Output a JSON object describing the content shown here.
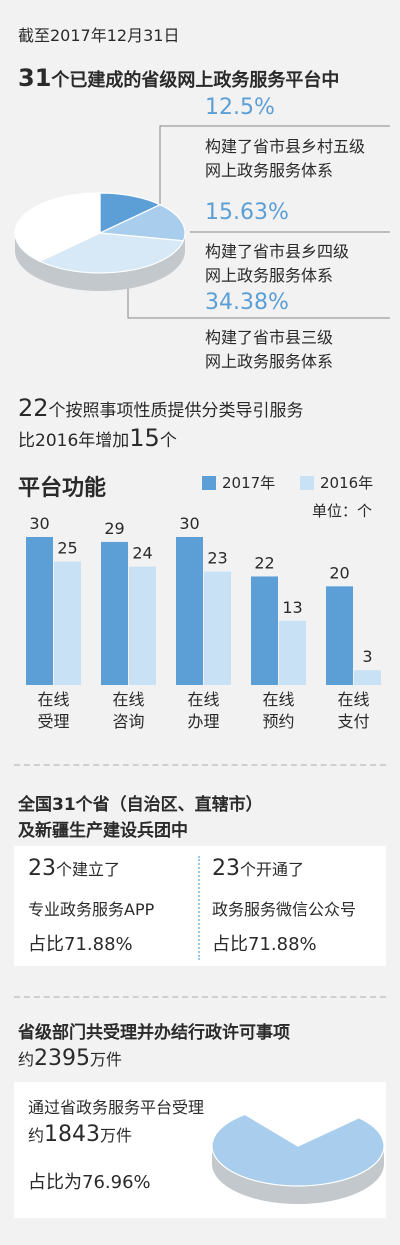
{
  "colors": {
    "blue": "#5b9fd6",
    "light_blue": "#c9e1f5",
    "text": "#2a2a2a"
  },
  "section1": {
    "date_line": "截至2017年12月31日",
    "heading_num": "31",
    "heading_rest": "个已建成的省级网上政务服务平台中",
    "items": [
      {
        "percent": "12.5%",
        "desc1": "构建了省市县乡村五级",
        "desc2": "网上政务服务体系"
      },
      {
        "percent": "15.63%",
        "desc1": "构建了省市县乡四级",
        "desc2": "网上政务服务体系"
      },
      {
        "percent": "34.38%",
        "desc1": "构建了省市县三级",
        "desc2": "网上政务服务体系"
      }
    ],
    "classify_num": "22",
    "classify_rest": "个按照事项性质提供分类导引服务",
    "compare_pre": "比2016年增加",
    "compare_num": "15",
    "compare_post": "个"
  },
  "chart_data": [
    {
      "type": "pie",
      "values": [
        12.5,
        15.63,
        34.38,
        37.49
      ],
      "labels": [
        "12.5%",
        "15.63%",
        "34.38%",
        ""
      ]
    },
    {
      "type": "bar",
      "title": "平台功能",
      "unit": "单位：个",
      "categories": [
        "在线受理",
        "在线咨询",
        "在线办理",
        "在线预约",
        "在线支付"
      ],
      "category_lines": [
        [
          "在线",
          "受理"
        ],
        [
          "在线",
          "咨询"
        ],
        [
          "在线",
          "办理"
        ],
        [
          "在线",
          "预约"
        ],
        [
          "在线",
          "支付"
        ]
      ],
      "series": [
        {
          "name": "2017年",
          "values": [
            30,
            29,
            30,
            22,
            20
          ],
          "color": "#5b9fd6"
        },
        {
          "name": "2016年",
          "values": [
            25,
            24,
            23,
            13,
            3
          ],
          "color": "#c9e1f5"
        }
      ],
      "ylim": [
        0,
        30
      ],
      "legend": "top-right"
    },
    {
      "type": "pie",
      "values": [
        76.96,
        23.04
      ],
      "labels": [
        "76.96%",
        ""
      ]
    }
  ],
  "section3": {
    "line1": "全国31个省（自治区、直辖市）",
    "line2": "及新疆生产建设兵团中",
    "left": {
      "num": "23",
      "suffix": "个建立了",
      "desc": "专业政务服务APP",
      "pct": "占比71.88%"
    },
    "right": {
      "num": "23",
      "suffix": "个开通了",
      "desc": "政务服务微信公众号",
      "pct": "占比71.88%"
    }
  },
  "section4": {
    "title": "省级部门共受理并办结行政许可事项",
    "total_pre": "约",
    "total_num": "2395",
    "total_post": "万件",
    "line1": "通过省政务服务平台受理",
    "via_pre": "约",
    "via_num": "1843",
    "via_post": "万件",
    "pct": "占比为76.96%"
  }
}
